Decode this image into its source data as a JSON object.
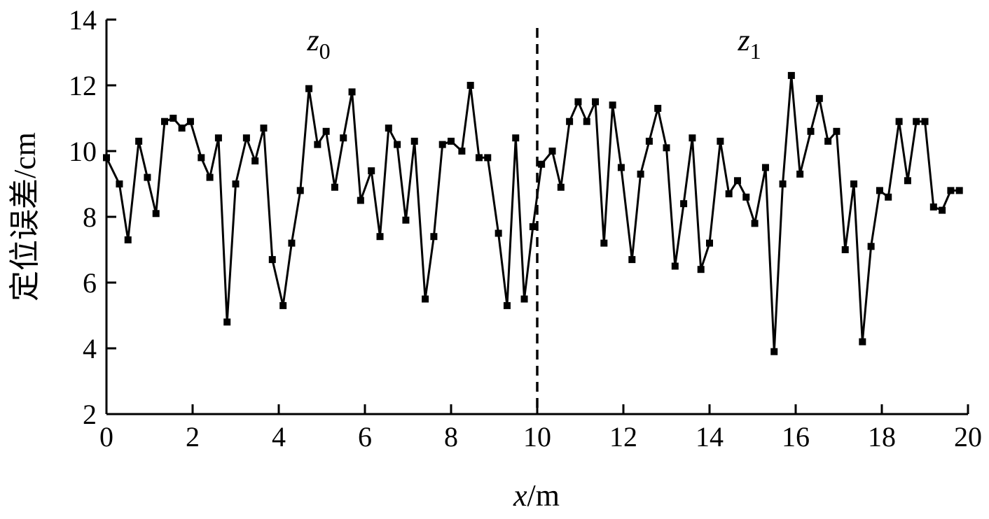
{
  "chart_data": {
    "type": "line",
    "title": "",
    "xlabel": {
      "var": "x",
      "unit": "/m"
    },
    "ylabel": "定位误差/cm",
    "xlim": [
      0,
      20
    ],
    "ylim": [
      2,
      14
    ],
    "xticks": [
      "0",
      "2",
      "4",
      "6",
      "8",
      "10",
      "12",
      "14",
      "16",
      "18",
      "20"
    ],
    "yticks": [
      "2",
      "4",
      "6",
      "8",
      "10",
      "12",
      "14"
    ],
    "grid": false,
    "legend": "none",
    "divider": {
      "x": 10,
      "style": "dashed"
    },
    "regions": [
      {
        "base": "z",
        "sub": "0",
        "x": 5
      },
      {
        "base": "z",
        "sub": "1",
        "x": 15
      }
    ],
    "series": [
      {
        "marker": "square",
        "color": "#000000",
        "x": [
          0.0,
          0.3,
          0.5,
          0.75,
          0.95,
          1.15,
          1.35,
          1.55,
          1.75,
          1.95,
          2.2,
          2.4,
          2.6,
          2.8,
          3.0,
          3.25,
          3.45,
          3.65,
          3.85,
          4.1,
          4.3,
          4.5,
          4.7,
          4.9,
          5.1,
          5.3,
          5.5,
          5.7,
          5.9,
          6.15,
          6.35,
          6.55,
          6.75,
          6.95,
          7.15,
          7.4,
          7.6,
          7.8,
          8.0,
          8.25,
          8.45,
          8.65,
          8.85,
          9.1,
          9.3,
          9.5,
          9.7,
          9.9,
          10.1,
          10.35,
          10.55,
          10.75,
          10.95,
          11.15,
          11.35,
          11.55,
          11.75,
          11.95,
          12.2,
          12.4,
          12.6,
          12.8,
          13.0,
          13.2,
          13.4,
          13.6,
          13.8,
          14.0,
          14.25,
          14.45,
          14.65,
          14.85,
          15.05,
          15.3,
          15.5,
          15.7,
          15.9,
          16.1,
          16.35,
          16.55,
          16.75,
          16.95,
          17.15,
          17.35,
          17.55,
          17.75,
          17.95,
          18.15,
          18.4,
          18.6,
          18.8,
          19.0,
          19.2,
          19.4,
          19.6,
          19.8
        ],
        "y": [
          9.8,
          9.0,
          7.3,
          10.3,
          9.2,
          8.1,
          10.9,
          11.0,
          10.7,
          10.9,
          9.8,
          9.2,
          10.4,
          4.8,
          9.0,
          10.4,
          9.7,
          10.7,
          6.7,
          5.3,
          7.2,
          8.8,
          11.9,
          10.2,
          10.6,
          8.9,
          10.4,
          11.8,
          8.5,
          9.4,
          7.4,
          10.7,
          10.2,
          7.9,
          10.3,
          5.5,
          7.4,
          10.2,
          10.3,
          10.0,
          12.0,
          9.8,
          9.8,
          7.5,
          5.3,
          10.4,
          5.5,
          7.7,
          9.6,
          10.0,
          8.9,
          10.9,
          11.5,
          10.9,
          11.5,
          7.2,
          11.4,
          9.5,
          6.7,
          9.3,
          10.3,
          11.3,
          10.1,
          6.5,
          8.4,
          10.4,
          6.4,
          7.2,
          10.3,
          8.7,
          9.1,
          8.6,
          7.8,
          9.5,
          3.9,
          9.0,
          12.3,
          9.3,
          10.6,
          11.6,
          10.3,
          10.6,
          7.0,
          9.0,
          4.2,
          7.1,
          8.8,
          8.6,
          10.9,
          9.1,
          10.9,
          10.9,
          8.3,
          8.2,
          8.8,
          8.8
        ]
      }
    ]
  }
}
